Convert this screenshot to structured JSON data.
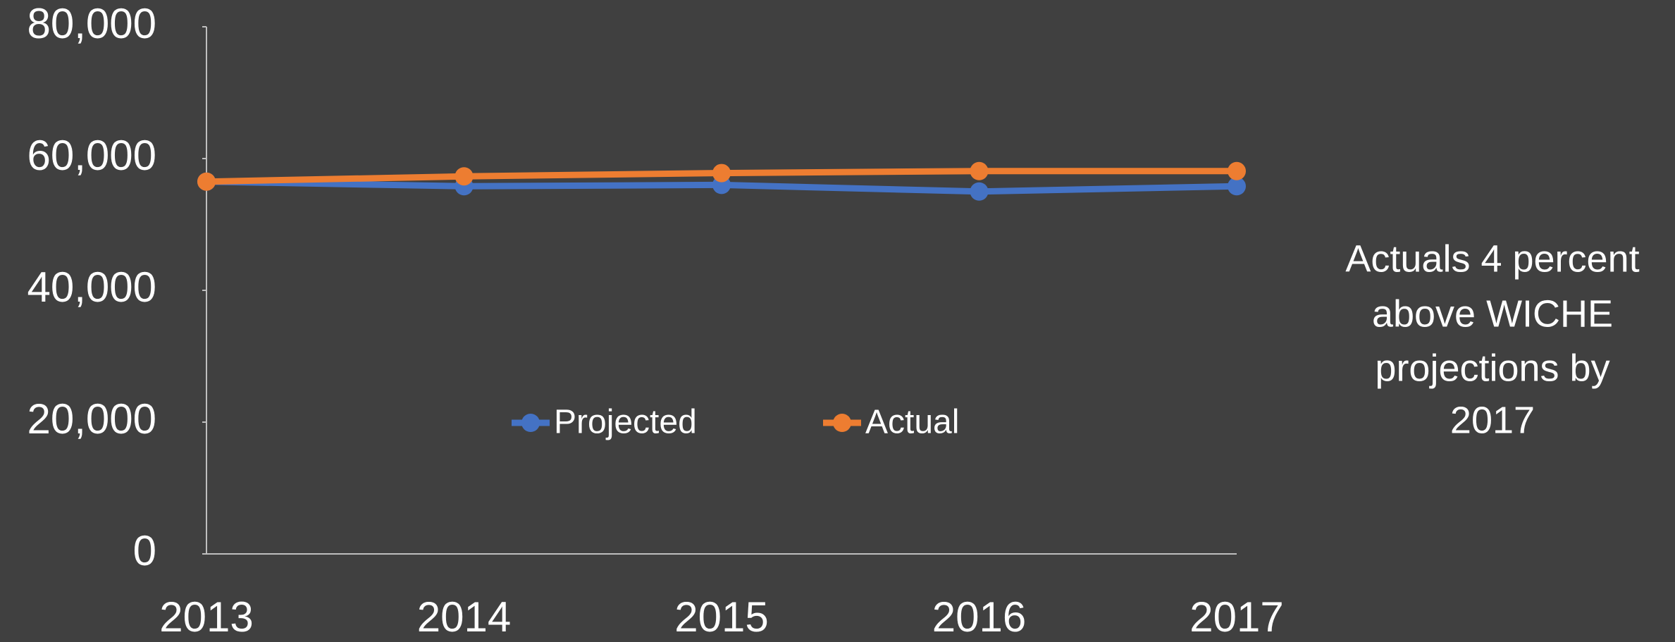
{
  "chart_data": {
    "type": "line",
    "categories": [
      "2013",
      "2014",
      "2015",
      "2016",
      "2017"
    ],
    "series": [
      {
        "name": "Projected",
        "color": "#4472c4",
        "values": [
          56500,
          55800,
          56000,
          55000,
          55800
        ]
      },
      {
        "name": "Actual",
        "color": "#ed7d31",
        "values": [
          56500,
          57300,
          57800,
          58100,
          58100
        ]
      }
    ],
    "ylim": [
      0,
      80000
    ],
    "yticks": [
      0,
      {
        "value": 20000,
        "label": "20,000"
      },
      {
        "value": 40000,
        "label": "40,000"
      },
      {
        "value": 60000,
        "label": "60,000"
      },
      {
        "value": 80000,
        "label": "80,000"
      }
    ],
    "grid": false,
    "legend": "center",
    "annotation": [
      "Actuals 4 percent",
      "above WICHE",
      "projections by",
      "2017"
    ]
  }
}
